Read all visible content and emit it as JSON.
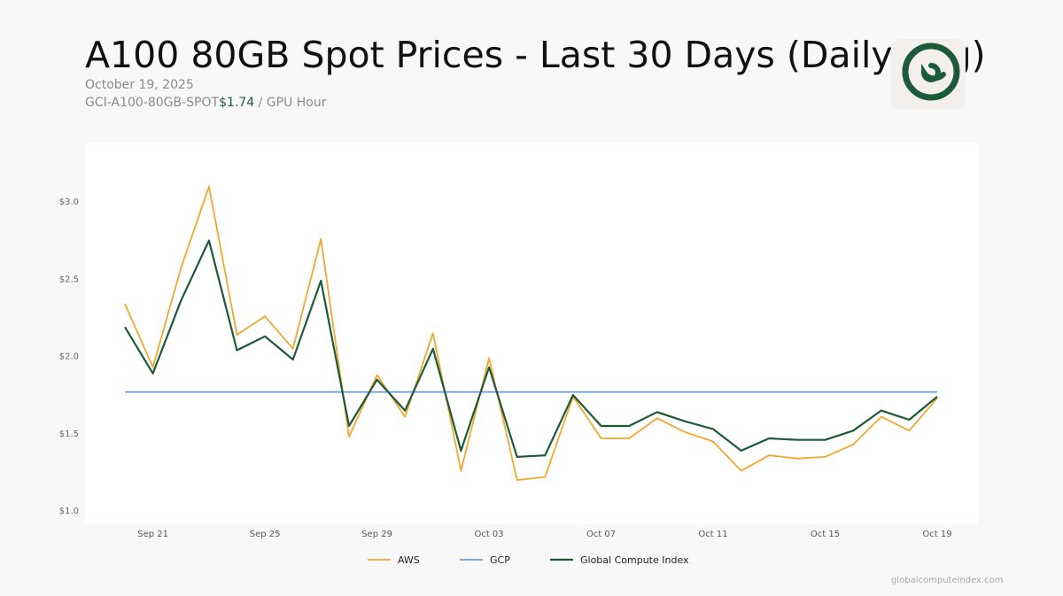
{
  "header": {
    "title": "A100 80GB Spot Prices - Last 30 Days (Daily Avg)",
    "date": "October 19, 2025",
    "index_name": "GCI-A100-80GB-SPOT",
    "index_price": "$1.74",
    "unit": "/ GPU Hour"
  },
  "footer": {
    "source": "globalcomputeindex.com"
  },
  "colors": {
    "aws": "#f0a830",
    "gcp": "#6f9ad6",
    "gci": "#1d5a3a",
    "logo": "#1d5a3a"
  },
  "icons": {
    "logo": "spiral-logo-icon"
  },
  "chart_data": {
    "type": "line",
    "x": [
      "Sep 20",
      "Sep 21",
      "Sep 22",
      "Sep 23",
      "Sep 24",
      "Sep 25",
      "Sep 26",
      "Sep 27",
      "Sep 28",
      "Sep 29",
      "Sep 30",
      "Oct 01",
      "Oct 02",
      "Oct 03",
      "Oct 04",
      "Oct 05",
      "Oct 06",
      "Oct 07",
      "Oct 08",
      "Oct 09",
      "Oct 10",
      "Oct 11",
      "Oct 12",
      "Oct 13",
      "Oct 14",
      "Oct 15",
      "Oct 16",
      "Oct 17",
      "Oct 18",
      "Oct 19"
    ],
    "xticks": [
      "Sep 21",
      "Sep 25",
      "Sep 29",
      "Oct 03",
      "Oct 07",
      "Oct 11",
      "Oct 15",
      "Oct 19"
    ],
    "yticks": [
      "$1.0",
      "$1.5",
      "$2.0",
      "$2.5",
      "$3.0"
    ],
    "ylim": [
      0.96,
      3.19
    ],
    "grid": false,
    "legend_position": "bottom-center",
    "series": [
      {
        "name": "AWS",
        "values": [
          2.34,
          1.93,
          2.57,
          3.1,
          2.14,
          2.26,
          2.05,
          2.76,
          1.48,
          1.88,
          1.61,
          2.15,
          1.26,
          1.99,
          1.2,
          1.22,
          1.74,
          1.47,
          1.47,
          1.6,
          1.51,
          1.45,
          1.26,
          1.36,
          1.34,
          1.35,
          1.43,
          1.61,
          1.52,
          1.73
        ]
      },
      {
        "name": "GCP",
        "values": [
          1.77,
          1.77,
          1.77,
          1.77,
          1.77,
          1.77,
          1.77,
          1.77,
          1.77,
          1.77,
          1.77,
          1.77,
          1.77,
          1.77,
          1.77,
          1.77,
          1.77,
          1.77,
          1.77,
          1.77,
          1.77,
          1.77,
          1.77,
          1.77,
          1.77,
          1.77,
          1.77,
          1.77,
          1.77,
          1.77
        ]
      },
      {
        "name": "Global Compute Index",
        "values": [
          2.19,
          1.89,
          2.36,
          2.75,
          2.04,
          2.13,
          1.98,
          2.49,
          1.55,
          1.85,
          1.65,
          2.05,
          1.39,
          1.93,
          1.35,
          1.36,
          1.75,
          1.55,
          1.55,
          1.64,
          1.58,
          1.53,
          1.39,
          1.47,
          1.46,
          1.46,
          1.52,
          1.65,
          1.59,
          1.74
        ]
      }
    ]
  }
}
